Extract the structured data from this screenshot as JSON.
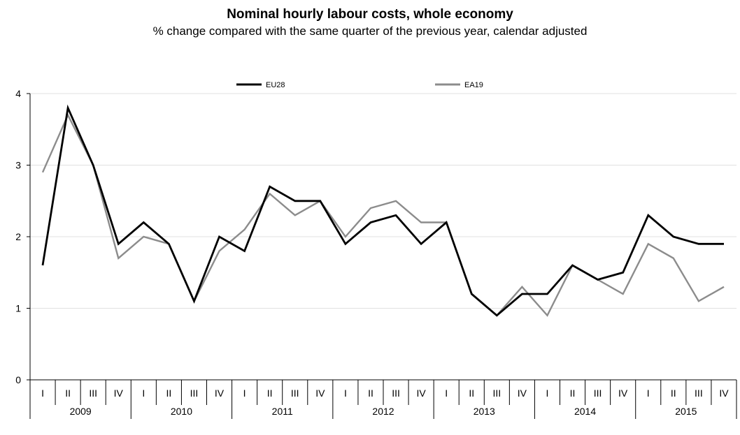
{
  "chart_data": {
    "type": "line",
    "title": "Nominal hourly labour costs, whole economy",
    "subtitle": "% change compared with the same quarter of the previous year, calendar adjusted",
    "xlabel": "",
    "ylabel": "",
    "ylim": [
      0,
      4
    ],
    "yticks": [
      "0",
      "1",
      "2",
      "3",
      "4"
    ],
    "grid": true,
    "legend_position": "top",
    "quarters": [
      "I",
      "II",
      "III",
      "IV",
      "I",
      "II",
      "III",
      "IV",
      "I",
      "II",
      "III",
      "IV",
      "I",
      "II",
      "III",
      "IV",
      "I",
      "II",
      "III",
      "IV",
      "I",
      "II",
      "III",
      "IV",
      "I",
      "II",
      "III",
      "IV"
    ],
    "years": [
      "2009",
      "2010",
      "2011",
      "2012",
      "2013",
      "2014",
      "2015"
    ],
    "series": [
      {
        "name": "EU28",
        "color": "#000000",
        "values": [
          1.6,
          3.8,
          3.0,
          1.9,
          2.2,
          1.9,
          1.1,
          2.0,
          1.8,
          2.7,
          2.5,
          2.5,
          1.9,
          2.2,
          2.3,
          1.9,
          2.2,
          1.2,
          0.9,
          1.2,
          1.2,
          1.6,
          1.4,
          1.5,
          2.3,
          2.0,
          1.9,
          1.9
        ]
      },
      {
        "name": "EA19",
        "color": "#8c8c8c",
        "values": [
          2.9,
          3.7,
          3.0,
          1.7,
          2.0,
          1.9,
          1.1,
          1.8,
          2.1,
          2.6,
          2.3,
          2.5,
          2.0,
          2.4,
          2.5,
          2.2,
          2.2,
          1.2,
          0.9,
          1.3,
          0.9,
          1.6,
          1.4,
          1.2,
          1.9,
          1.7,
          1.1,
          1.3
        ]
      }
    ]
  }
}
